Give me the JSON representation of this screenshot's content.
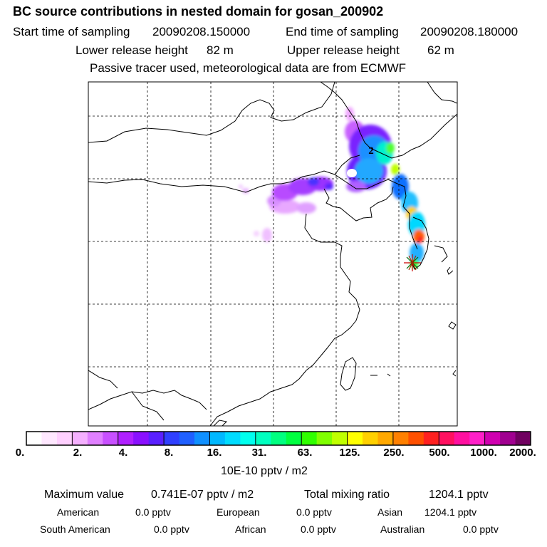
{
  "header": {
    "title": "BC  source contributions in nested domain for gosan_200902",
    "start_label": "Start time of sampling",
    "start_value": "20090208.150000",
    "end_label": "End time of sampling",
    "end_value": "20090208.180000",
    "lower_label": "Lower release height",
    "lower_value": "82 m",
    "upper_label": "Upper release height",
    "upper_value": "62 m",
    "note": "Passive tracer used, meteorological data are from ECMWF"
  },
  "map": {
    "marker_labels": [
      "2"
    ],
    "release_marker": "star-icon"
  },
  "colorbar": {
    "colors": [
      "#ffffff",
      "#ffe8ff",
      "#ffd0ff",
      "#f5b0ff",
      "#e080ff",
      "#c850ff",
      "#b020ff",
      "#8a10ff",
      "#5a20ff",
      "#3040ff",
      "#2060ff",
      "#1090ff",
      "#00b8ff",
      "#00dcff",
      "#00ffee",
      "#00ffc0",
      "#00ff80",
      "#00ff40",
      "#30ff00",
      "#80ff00",
      "#c0ff00",
      "#ffff00",
      "#ffd000",
      "#ffa800",
      "#ff8000",
      "#ff5000",
      "#ff2020",
      "#ff1060",
      "#ff10a0",
      "#ff20c8",
      "#d000b0",
      "#a00090",
      "#700060"
    ],
    "labels": [
      "0.",
      "2.",
      "4.",
      "8.",
      "16.",
      "31.",
      "63.",
      "125.",
      "250.",
      "500.",
      "1000.",
      "2000."
    ],
    "units": "10E-10 pptv / m2"
  },
  "stats": {
    "max_label": "Maximum value",
    "max_value": "0.741E-07 pptv / m2",
    "total_label": "Total mixing ratio",
    "total_value": "1204.1 pptv",
    "regions": [
      {
        "name": "American",
        "value": "0.0 pptv"
      },
      {
        "name": "European",
        "value": "0.0 pptv"
      },
      {
        "name": "Asian",
        "value": "1204.1 pptv"
      },
      {
        "name": "South American",
        "value": "0.0 pptv"
      },
      {
        "name": "African",
        "value": "0.0 pptv"
      },
      {
        "name": "Australian",
        "value": "0.0 pptv"
      }
    ]
  }
}
